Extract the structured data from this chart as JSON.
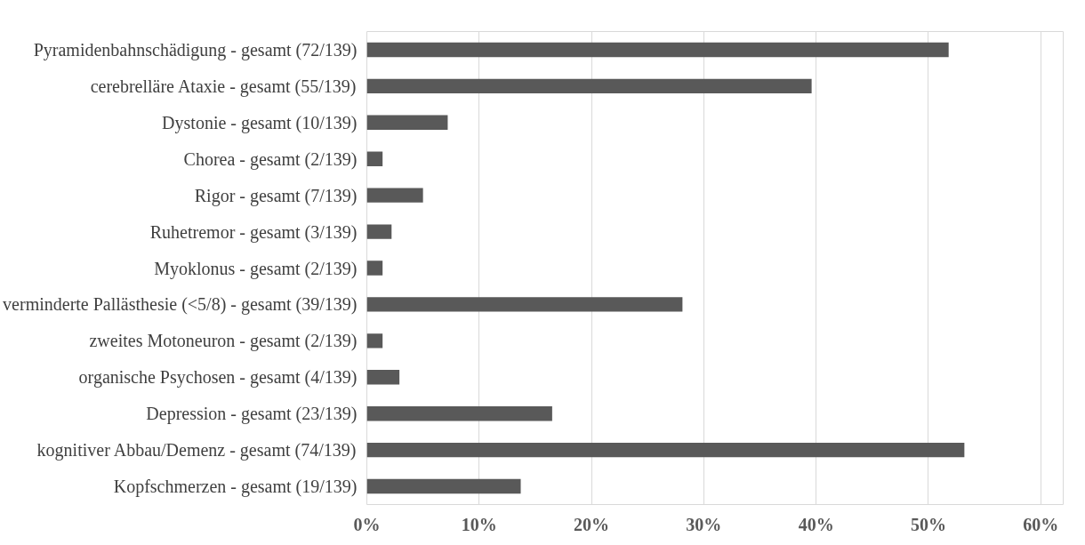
{
  "chart_data": {
    "type": "bar",
    "orientation": "horizontal",
    "categories": [
      "Pyramidenbahnschädigung - gesamt (72/139)",
      "cerebrelläre Ataxie - gesamt (55/139)",
      "Dystonie - gesamt (10/139)",
      "Chorea - gesamt (2/139)",
      "Rigor - gesamt (7/139)",
      "Ruhetremor - gesamt (3/139)",
      "Myoklonus - gesamt (2/139)",
      "verminderte Pallästhesie (<5/8) - gesamt (39/139)",
      "zweites Motoneuron - gesamt (2/139)",
      "organische Psychosen - gesamt (4/139)",
      "Depression - gesamt (23/139)",
      "kognitiver Abbau/Demenz - gesamt (74/139)",
      "Kopfschmerzen - gesamt (19/139)"
    ],
    "values": [
      51.8,
      39.6,
      7.2,
      1.4,
      5.0,
      2.2,
      1.4,
      28.1,
      1.4,
      2.9,
      16.5,
      53.2,
      13.7
    ],
    "color": "#595959",
    "xlim": [
      0,
      62
    ],
    "xticks": [
      {
        "value": 0,
        "label": "0%"
      },
      {
        "value": 10,
        "label": "10%"
      },
      {
        "value": 20,
        "label": "20%"
      },
      {
        "value": 30,
        "label": "30%"
      },
      {
        "value": 40,
        "label": "40%"
      },
      {
        "value": 50,
        "label": "50%"
      },
      {
        "value": 60,
        "label": "60%"
      }
    ],
    "grid": "x"
  }
}
